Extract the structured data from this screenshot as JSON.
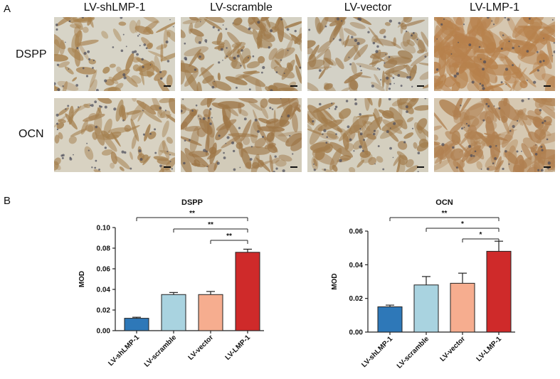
{
  "figure": {
    "panel_a_label": "A",
    "panel_b_label": "B",
    "columns": [
      "LV-shLMP-1",
      "LV-scramble",
      "LV-vector",
      "LV-LMP-1"
    ],
    "rows": [
      "DSPP",
      "OCN"
    ]
  },
  "image_panels": [
    {
      "row": "DSPP",
      "column": "LV-shLMP-1",
      "bg": "#d7d4c7",
      "stain": "#a8824f",
      "intensity": 0.18
    },
    {
      "row": "DSPP",
      "column": "LV-scramble",
      "bg": "#d4d1c3",
      "stain": "#a07a4a",
      "intensity": 0.32
    },
    {
      "row": "DSPP",
      "column": "LV-vector",
      "bg": "#d3d1c6",
      "stain": "#9f7a4c",
      "intensity": 0.3
    },
    {
      "row": "DSPP",
      "column": "LV-LMP-1",
      "bg": "#d6c7b0",
      "stain": "#b7814c",
      "intensity": 0.85
    },
    {
      "row": "OCN",
      "column": "LV-shLMP-1",
      "bg": "#d8d2c2",
      "stain": "#a5804f",
      "intensity": 0.22
    },
    {
      "row": "OCN",
      "column": "LV-scramble",
      "bg": "#d2cbb9",
      "stain": "#9e7647",
      "intensity": 0.4
    },
    {
      "row": "OCN",
      "column": "LV-vector",
      "bg": "#d4cfbf",
      "stain": "#a27c4c",
      "intensity": 0.38
    },
    {
      "row": "OCN",
      "column": "LV-LMP-1",
      "bg": "#d6c8b1",
      "stain": "#b08050",
      "intensity": 0.65
    }
  ],
  "chart_data": [
    {
      "type": "bar",
      "title": "DSPP",
      "ylabel": "MOD",
      "xlabel": "",
      "categories": [
        "LV-shLMP-1",
        "LV-scramble",
        "LV-vector",
        "LV-LMP-1"
      ],
      "values": [
        0.012,
        0.035,
        0.035,
        0.076
      ],
      "errors": [
        0.001,
        0.002,
        0.003,
        0.003
      ],
      "colors": [
        "#2e78b8",
        "#a9d3e0",
        "#f6ad8f",
        "#cf2a2a"
      ],
      "ylim": [
        0,
        0.1
      ],
      "yticks": [
        "0.00",
        "0.02",
        "0.04",
        "0.06",
        "0.08",
        "0.10"
      ],
      "significance": [
        {
          "from": "LV-shLMP-1",
          "to": "LV-LMP-1",
          "label": "**"
        },
        {
          "from": "LV-scramble",
          "to": "LV-LMP-1",
          "label": "**"
        },
        {
          "from": "LV-vector",
          "to": "LV-LMP-1",
          "label": "**"
        }
      ]
    },
    {
      "type": "bar",
      "title": "OCN",
      "ylabel": "MOD",
      "xlabel": "",
      "categories": [
        "LV-shLMP-1",
        "LV-scramble",
        "LV-vector",
        "LV-LMP-1"
      ],
      "values": [
        0.015,
        0.028,
        0.029,
        0.048
      ],
      "errors": [
        0.001,
        0.005,
        0.006,
        0.006
      ],
      "colors": [
        "#2e78b8",
        "#a9d3e0",
        "#f6ad8f",
        "#cf2a2a"
      ],
      "ylim": [
        0,
        0.06
      ],
      "yticks": [
        "0.00",
        "0.02",
        "0.04",
        "0.06"
      ],
      "significance": [
        {
          "from": "LV-shLMP-1",
          "to": "LV-LMP-1",
          "label": "**"
        },
        {
          "from": "LV-scramble",
          "to": "LV-LMP-1",
          "label": "*"
        },
        {
          "from": "LV-vector",
          "to": "LV-LMP-1",
          "label": "*"
        }
      ]
    }
  ]
}
